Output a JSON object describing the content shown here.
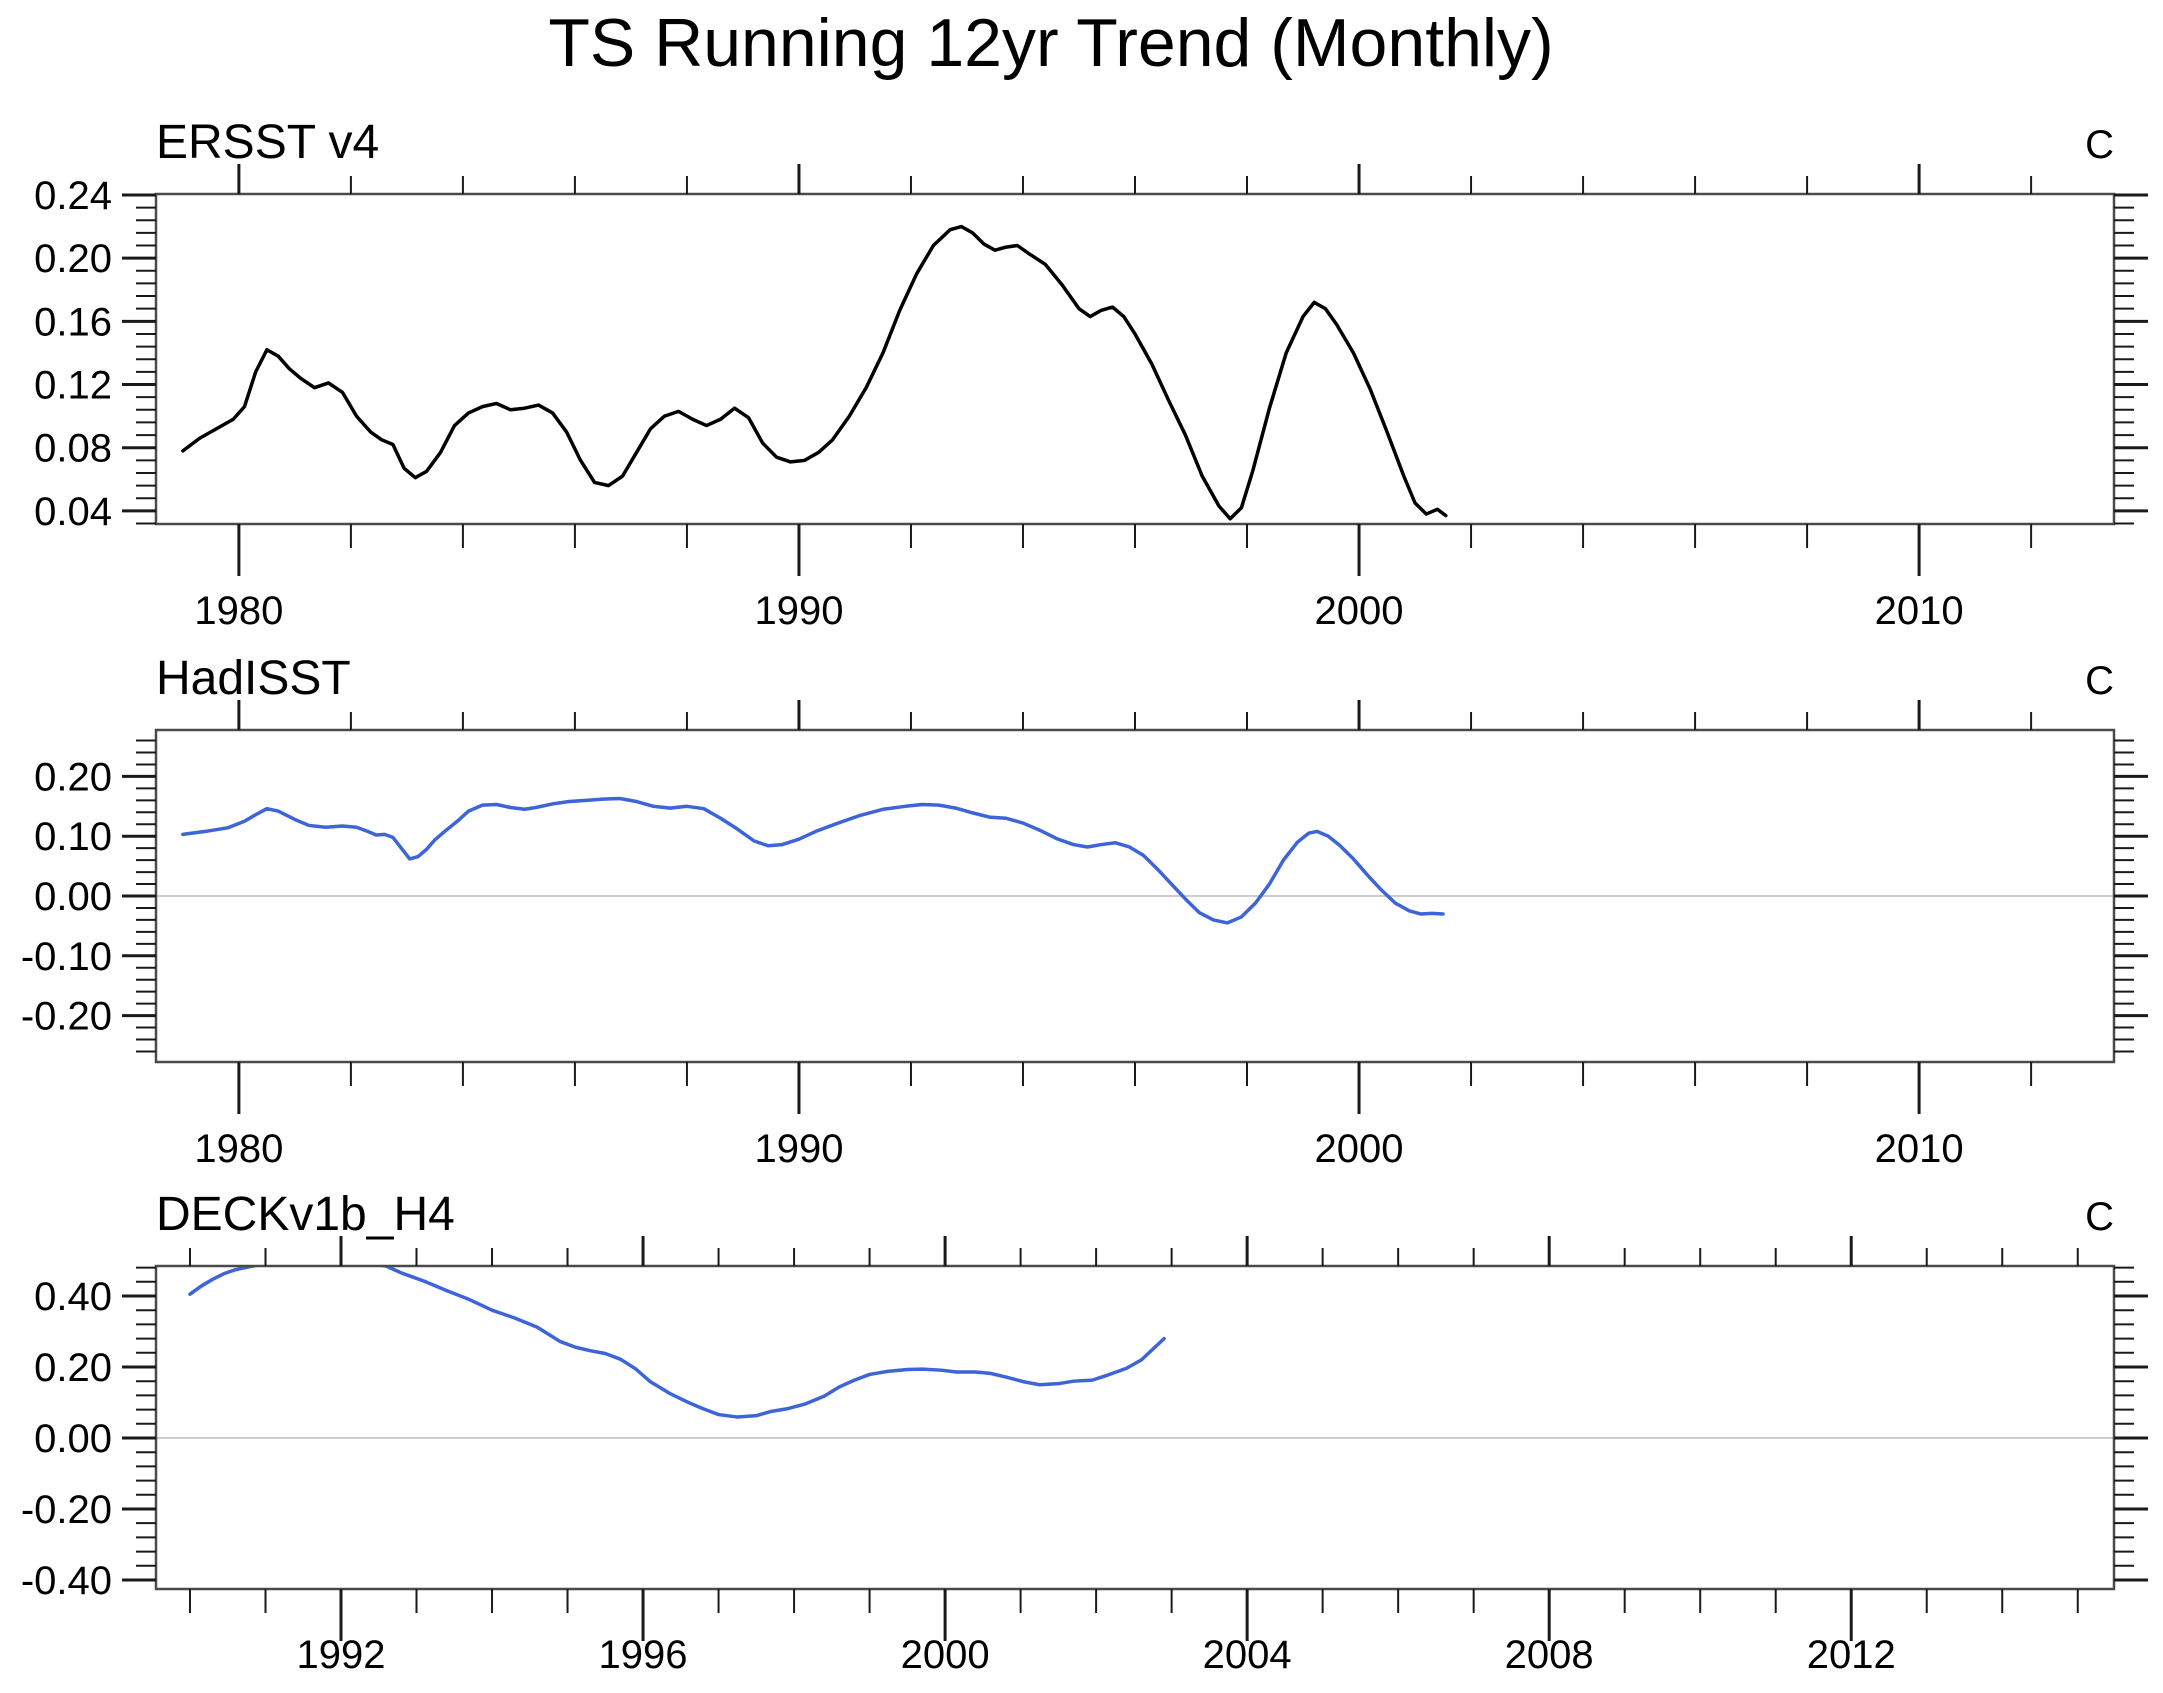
{
  "title": "TS Running 12yr Trend (Monthly)",
  "colors": {
    "background": "#ffffff",
    "black_series": "#000000",
    "blue_series": "#3d64d8",
    "zero_line": "#cdcdcd",
    "frame": "#4a4a4a",
    "tick": "#1a1a1a",
    "text": "#000000"
  },
  "chart_data": [
    {
      "type": "line",
      "title": "ERSST v4",
      "unit": "C",
      "series_color": "#000000",
      "xlim": [
        1978.52,
        2013.48
      ],
      "ylim": [
        0.0317,
        0.2406
      ],
      "x_major_ticks": [
        1980,
        1990,
        2000,
        2010
      ],
      "x_tick_labels": [
        "1980",
        "1990",
        "2000",
        "2010"
      ],
      "x_minor_step": 2,
      "y_major_ticks": [
        0.04,
        0.08,
        0.12,
        0.16,
        0.2,
        0.24
      ],
      "y_tick_labels": [
        "0.04",
        "0.08",
        "0.12",
        "0.16",
        "0.20",
        "0.24"
      ],
      "y_minor_step": 0.008,
      "zero_line": false,
      "grid": false,
      "legend": "none",
      "points": [
        [
          1979.0,
          0.078
        ],
        [
          1979.3,
          0.086
        ],
        [
          1979.6,
          0.092
        ],
        [
          1979.9,
          0.098
        ],
        [
          1980.1,
          0.106
        ],
        [
          1980.3,
          0.128
        ],
        [
          1980.5,
          0.142
        ],
        [
          1980.7,
          0.138
        ],
        [
          1980.9,
          0.13
        ],
        [
          1981.1,
          0.124
        ],
        [
          1981.35,
          0.118
        ],
        [
          1981.6,
          0.121
        ],
        [
          1981.85,
          0.115
        ],
        [
          1982.1,
          0.1
        ],
        [
          1982.35,
          0.09
        ],
        [
          1982.55,
          0.085
        ],
        [
          1982.75,
          0.082
        ],
        [
          1982.95,
          0.067
        ],
        [
          1983.15,
          0.061
        ],
        [
          1983.35,
          0.065
        ],
        [
          1983.6,
          0.077
        ],
        [
          1983.85,
          0.094
        ],
        [
          1984.1,
          0.102
        ],
        [
          1984.35,
          0.106
        ],
        [
          1984.6,
          0.108
        ],
        [
          1984.85,
          0.104
        ],
        [
          1985.1,
          0.105
        ],
        [
          1985.35,
          0.107
        ],
        [
          1985.6,
          0.102
        ],
        [
          1985.85,
          0.09
        ],
        [
          1986.1,
          0.072
        ],
        [
          1986.35,
          0.058
        ],
        [
          1986.6,
          0.056
        ],
        [
          1986.85,
          0.062
        ],
        [
          1987.1,
          0.077
        ],
        [
          1987.35,
          0.092
        ],
        [
          1987.6,
          0.1
        ],
        [
          1987.85,
          0.103
        ],
        [
          1988.1,
          0.098
        ],
        [
          1988.35,
          0.094
        ],
        [
          1988.6,
          0.098
        ],
        [
          1988.85,
          0.105
        ],
        [
          1989.1,
          0.099
        ],
        [
          1989.35,
          0.083
        ],
        [
          1989.6,
          0.074
        ],
        [
          1989.85,
          0.071
        ],
        [
          1990.1,
          0.072
        ],
        [
          1990.35,
          0.077
        ],
        [
          1990.6,
          0.085
        ],
        [
          1990.9,
          0.1
        ],
        [
          1991.2,
          0.118
        ],
        [
          1991.5,
          0.14
        ],
        [
          1991.8,
          0.167
        ],
        [
          1992.1,
          0.19
        ],
        [
          1992.4,
          0.208
        ],
        [
          1992.7,
          0.218
        ],
        [
          1992.9,
          0.22
        ],
        [
          1993.1,
          0.216
        ],
        [
          1993.3,
          0.209
        ],
        [
          1993.5,
          0.205
        ],
        [
          1993.7,
          0.207
        ],
        [
          1993.9,
          0.208
        ],
        [
          1994.1,
          0.203
        ],
        [
          1994.4,
          0.196
        ],
        [
          1994.7,
          0.183
        ],
        [
          1995.0,
          0.168
        ],
        [
          1995.2,
          0.163
        ],
        [
          1995.4,
          0.167
        ],
        [
          1995.6,
          0.169
        ],
        [
          1995.8,
          0.163
        ],
        [
          1996.0,
          0.152
        ],
        [
          1996.3,
          0.133
        ],
        [
          1996.6,
          0.11
        ],
        [
          1996.9,
          0.088
        ],
        [
          1997.2,
          0.062
        ],
        [
          1997.5,
          0.043
        ],
        [
          1997.7,
          0.035
        ],
        [
          1997.9,
          0.042
        ],
        [
          1998.1,
          0.065
        ],
        [
          1998.4,
          0.105
        ],
        [
          1998.7,
          0.14
        ],
        [
          1999.0,
          0.163
        ],
        [
          1999.2,
          0.172
        ],
        [
          1999.4,
          0.168
        ],
        [
          1999.6,
          0.158
        ],
        [
          1999.9,
          0.14
        ],
        [
          2000.2,
          0.117
        ],
        [
          2000.5,
          0.09
        ],
        [
          2000.8,
          0.062
        ],
        [
          2001.0,
          0.045
        ],
        [
          2001.2,
          0.038
        ],
        [
          2001.4,
          0.041
        ],
        [
          2001.55,
          0.037
        ]
      ]
    },
    {
      "type": "line",
      "title": "HadISST",
      "unit": "C",
      "series_color": "#3d64d8",
      "xlim": [
        1978.52,
        2013.48
      ],
      "ylim": [
        -0.2776,
        0.2776
      ],
      "x_major_ticks": [
        1980,
        1990,
        2000,
        2010
      ],
      "x_tick_labels": [
        "1980",
        "1990",
        "2000",
        "2010"
      ],
      "x_minor_step": 2,
      "y_major_ticks": [
        -0.2,
        -0.1,
        0.0,
        0.1,
        0.2
      ],
      "y_tick_labels": [
        "-0.20",
        "-0.10",
        "0.00",
        "0.10",
        "0.20"
      ],
      "y_minor_step": 0.02,
      "zero_line": true,
      "grid": false,
      "legend": "none",
      "points": [
        [
          1979.0,
          0.103
        ],
        [
          1979.4,
          0.108
        ],
        [
          1979.8,
          0.114
        ],
        [
          1980.1,
          0.125
        ],
        [
          1980.3,
          0.136
        ],
        [
          1980.5,
          0.146
        ],
        [
          1980.7,
          0.142
        ],
        [
          1981.0,
          0.128
        ],
        [
          1981.25,
          0.118
        ],
        [
          1981.55,
          0.115
        ],
        [
          1981.85,
          0.117
        ],
        [
          1982.1,
          0.115
        ],
        [
          1982.3,
          0.108
        ],
        [
          1982.45,
          0.102
        ],
        [
          1982.6,
          0.103
        ],
        [
          1982.75,
          0.098
        ],
        [
          1982.9,
          0.08
        ],
        [
          1983.05,
          0.062
        ],
        [
          1983.2,
          0.066
        ],
        [
          1983.35,
          0.078
        ],
        [
          1983.5,
          0.094
        ],
        [
          1983.7,
          0.11
        ],
        [
          1983.9,
          0.125
        ],
        [
          1984.1,
          0.142
        ],
        [
          1984.35,
          0.152
        ],
        [
          1984.6,
          0.153
        ],
        [
          1984.85,
          0.148
        ],
        [
          1985.1,
          0.145
        ],
        [
          1985.3,
          0.148
        ],
        [
          1985.6,
          0.154
        ],
        [
          1985.9,
          0.158
        ],
        [
          1986.2,
          0.16
        ],
        [
          1986.5,
          0.162
        ],
        [
          1986.8,
          0.163
        ],
        [
          1987.1,
          0.158
        ],
        [
          1987.4,
          0.15
        ],
        [
          1987.7,
          0.147
        ],
        [
          1988.0,
          0.15
        ],
        [
          1988.3,
          0.146
        ],
        [
          1988.6,
          0.13
        ],
        [
          1988.9,
          0.112
        ],
        [
          1989.2,
          0.092
        ],
        [
          1989.45,
          0.084
        ],
        [
          1989.7,
          0.086
        ],
        [
          1990.0,
          0.095
        ],
        [
          1990.3,
          0.108
        ],
        [
          1990.7,
          0.122
        ],
        [
          1991.1,
          0.135
        ],
        [
          1991.5,
          0.145
        ],
        [
          1991.9,
          0.15
        ],
        [
          1992.2,
          0.153
        ],
        [
          1992.5,
          0.152
        ],
        [
          1992.8,
          0.147
        ],
        [
          1993.1,
          0.139
        ],
        [
          1993.4,
          0.132
        ],
        [
          1993.7,
          0.13
        ],
        [
          1994.0,
          0.122
        ],
        [
          1994.3,
          0.11
        ],
        [
          1994.6,
          0.096
        ],
        [
          1994.9,
          0.086
        ],
        [
          1995.15,
          0.082
        ],
        [
          1995.4,
          0.086
        ],
        [
          1995.65,
          0.089
        ],
        [
          1995.9,
          0.082
        ],
        [
          1996.15,
          0.068
        ],
        [
          1996.4,
          0.045
        ],
        [
          1996.65,
          0.02
        ],
        [
          1996.9,
          -0.005
        ],
        [
          1997.15,
          -0.028
        ],
        [
          1997.4,
          -0.04
        ],
        [
          1997.65,
          -0.045
        ],
        [
          1997.9,
          -0.035
        ],
        [
          1998.15,
          -0.012
        ],
        [
          1998.4,
          0.02
        ],
        [
          1998.65,
          0.06
        ],
        [
          1998.9,
          0.09
        ],
        [
          1999.1,
          0.105
        ],
        [
          1999.25,
          0.108
        ],
        [
          1999.45,
          0.1
        ],
        [
          1999.65,
          0.085
        ],
        [
          1999.9,
          0.062
        ],
        [
          2000.15,
          0.035
        ],
        [
          2000.4,
          0.01
        ],
        [
          2000.65,
          -0.012
        ],
        [
          2000.9,
          -0.025
        ],
        [
          2001.1,
          -0.03
        ],
        [
          2001.3,
          -0.029
        ],
        [
          2001.5,
          -0.03
        ]
      ]
    },
    {
      "type": "line",
      "title": "DECKv1b_H4",
      "unit": "C",
      "series_color": "#3d64d8",
      "xlim": [
        1989.55,
        2015.48
      ],
      "ylim": [
        -0.4254,
        0.4845
      ],
      "x_major_ticks": [
        1992,
        1996,
        2000,
        2004,
        2008,
        2012
      ],
      "x_tick_labels": [
        "1992",
        "1996",
        "2000",
        "2004",
        "2008",
        "2012"
      ],
      "x_minor_step": 1,
      "y_major_ticks": [
        -0.4,
        -0.2,
        0.0,
        0.2,
        0.4
      ],
      "y_tick_labels": [
        "-0.40",
        "-0.20",
        "0.00",
        "0.20",
        "0.40"
      ],
      "y_minor_step": 0.04,
      "zero_line": true,
      "grid": false,
      "legend": "none",
      "points": [
        [
          1990.0,
          0.405
        ],
        [
          1990.15,
          0.428
        ],
        [
          1990.3,
          0.447
        ],
        [
          1990.45,
          0.463
        ],
        [
          1990.6,
          0.474
        ],
        [
          1990.75,
          0.481
        ],
        [
          1990.9,
          0.487
        ],
        [
          1991.2,
          0.502
        ],
        [
          1991.6,
          0.51
        ],
        [
          1992.0,
          0.506
        ],
        [
          1992.3,
          0.496
        ],
        [
          1992.6,
          0.484
        ],
        [
          1992.8,
          0.465
        ],
        [
          1993.1,
          0.442
        ],
        [
          1993.4,
          0.415
        ],
        [
          1993.7,
          0.39
        ],
        [
          1994.0,
          0.36
        ],
        [
          1994.3,
          0.338
        ],
        [
          1994.6,
          0.312
        ],
        [
          1994.9,
          0.272
        ],
        [
          1995.1,
          0.256
        ],
        [
          1995.3,
          0.246
        ],
        [
          1995.5,
          0.238
        ],
        [
          1995.7,
          0.222
        ],
        [
          1995.9,
          0.195
        ],
        [
          1996.1,
          0.158
        ],
        [
          1996.35,
          0.126
        ],
        [
          1996.6,
          0.1
        ],
        [
          1996.8,
          0.082
        ],
        [
          1997.0,
          0.066
        ],
        [
          1997.25,
          0.059
        ],
        [
          1997.5,
          0.063
        ],
        [
          1997.7,
          0.075
        ],
        [
          1997.9,
          0.082
        ],
        [
          1998.15,
          0.096
        ],
        [
          1998.4,
          0.118
        ],
        [
          1998.6,
          0.144
        ],
        [
          1998.8,
          0.163
        ],
        [
          1999.0,
          0.179
        ],
        [
          1999.25,
          0.188
        ],
        [
          1999.5,
          0.193
        ],
        [
          1999.7,
          0.194
        ],
        [
          1999.95,
          0.191
        ],
        [
          2000.15,
          0.186
        ],
        [
          2000.4,
          0.186
        ],
        [
          2000.6,
          0.182
        ],
        [
          2000.8,
          0.172
        ],
        [
          2001.05,
          0.158
        ],
        [
          2001.25,
          0.15
        ],
        [
          2001.5,
          0.153
        ],
        [
          2001.7,
          0.16
        ],
        [
          2001.95,
          0.163
        ],
        [
          2002.15,
          0.177
        ],
        [
          2002.4,
          0.196
        ],
        [
          2002.6,
          0.22
        ],
        [
          2002.75,
          0.25
        ],
        [
          2002.9,
          0.28
        ]
      ]
    }
  ]
}
